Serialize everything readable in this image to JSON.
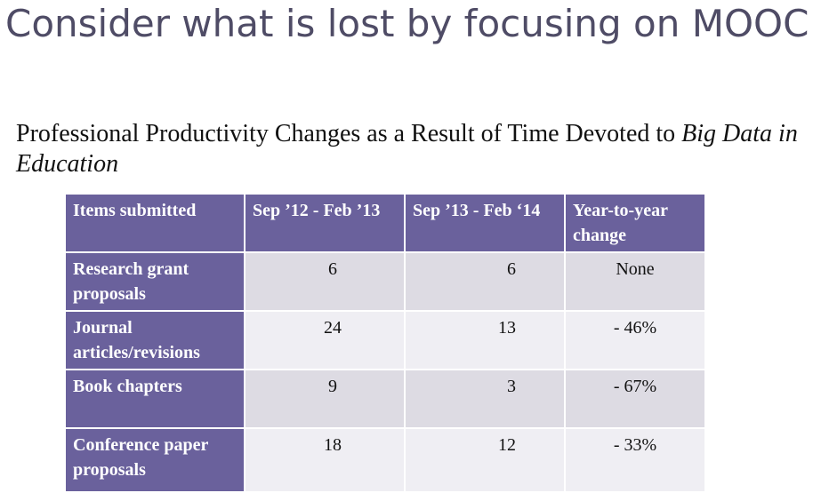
{
  "slide": {
    "title": "Consider what is lost by focusing on MOOC",
    "subtitle_plain": "Professional Productivity Changes as a Result of Time Devoted to ",
    "subtitle_italic": "Big Data in Education"
  },
  "table": {
    "headers": [
      "Items submitted",
      "Sep ’12 - Feb ’13",
      "Sep ’13 - Feb ‘14",
      "Year-to-year change"
    ],
    "rows": [
      {
        "label": "Research grant proposals",
        "period1": "6",
        "period2": "6",
        "change": "None"
      },
      {
        "label": "Journal articles/revisions",
        "period1": "24",
        "period2": "13",
        "change": "- 46%"
      },
      {
        "label": "Book chapters",
        "period1": "9",
        "period2": "3",
        "change": "- 67%"
      },
      {
        "label": "Conference paper proposals",
        "period1": "18",
        "period2": "12",
        "change": "- 33%"
      }
    ]
  },
  "colors": {
    "title": "#4f4c66",
    "header_bg": "#6a619c",
    "row_odd_bg": "#dddbe3",
    "row_even_bg": "#efeef3"
  }
}
